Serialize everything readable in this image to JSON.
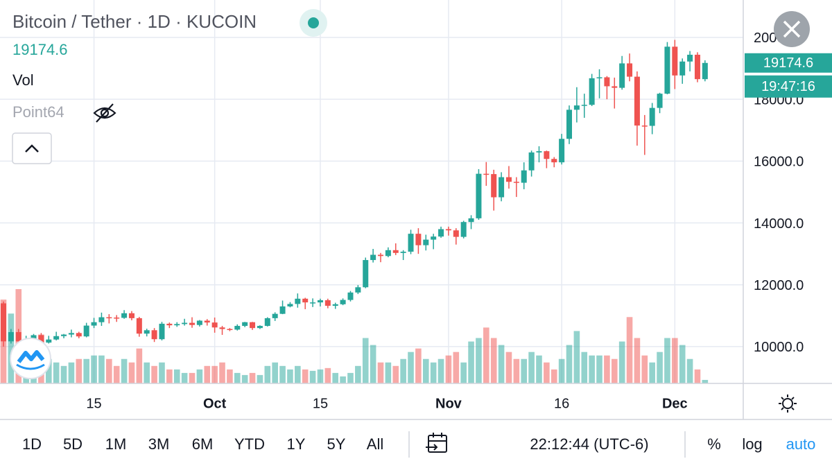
{
  "chart_data": {
    "type": "candlestick",
    "title": "Bitcoin / Tether · 1D · KUCOIN",
    "volume_label": "Vol",
    "indicator_label": "Point64",
    "price_time": "19:47:16",
    "up_color": "#26a69a",
    "down_color": "#ef5350",
    "grid": true,
    "categories": [
      null,
      null,
      null,
      null,
      null,
      null,
      null,
      null,
      null,
      null,
      null,
      null,
      "15",
      null,
      null,
      null,
      null,
      null,
      null,
      null,
      null,
      null,
      null,
      null,
      null,
      null,
      null,
      null,
      "Oct",
      null,
      null,
      null,
      null,
      null,
      null,
      null,
      null,
      null,
      null,
      null,
      null,
      null,
      "15",
      null,
      null,
      null,
      null,
      null,
      null,
      null,
      null,
      null,
      null,
      null,
      null,
      null,
      null,
      null,
      null,
      "Nov",
      null,
      null,
      null,
      null,
      null,
      null,
      null,
      null,
      null,
      null,
      null,
      null,
      null,
      null,
      "16",
      null,
      null,
      null,
      null,
      null,
      null,
      null,
      null,
      null,
      null,
      null,
      null,
      null,
      null,
      "Dec",
      null,
      null,
      null,
      null
    ],
    "open": [
      11400,
      10170,
      10470,
      10170,
      10250,
      10370,
      10130,
      10230,
      10340,
      10390,
      10440,
      10330,
      10680,
      10790,
      10950,
      10940,
      10930,
      11080,
      10920,
      10420,
      10530,
      10240,
      10740,
      10690,
      10730,
      10770,
      10700,
      10840,
      10780,
      10620,
      10570,
      10550,
      10670,
      10790,
      10600,
      10670,
      10920,
      11060,
      11300,
      11380,
      11550,
      11430,
      11430,
      11500,
      11320,
      11370,
      11510,
      11750,
      11920,
      12800,
      12970,
      12930,
      13120,
      13030,
      13070,
      13650,
      13280,
      13460,
      13560,
      13800,
      13760,
      13550,
      14030,
      14150,
      15590,
      15580,
      14830,
      15480,
      15330,
      15300,
      15700,
      16280,
      16320,
      16070,
      15960,
      16720,
      17660,
      17800,
      17820,
      18680,
      18710,
      18420,
      18370,
      19160,
      18730,
      17150,
      17140,
      17720,
      18180,
      19700,
      18770,
      19220,
      19440,
      18650
    ],
    "high": [
      11460,
      10570,
      10570,
      10350,
      10410,
      10440,
      10350,
      10480,
      10410,
      10550,
      10480,
      10770,
      10930,
      11100,
      11050,
      11020,
      11180,
      11150,
      10960,
      10580,
      10600,
      10800,
      10780,
      10790,
      10900,
      10950,
      10860,
      10890,
      10940,
      10670,
      10600,
      10720,
      10800,
      10800,
      10690,
      10950,
      11110,
      11490,
      11440,
      11720,
      11580,
      11560,
      11550,
      11550,
      11420,
      11560,
      11800,
      11990,
      12880,
      13160,
      13030,
      13210,
      13340,
      13120,
      13780,
      13830,
      13620,
      13650,
      13880,
      13880,
      13830,
      14070,
      14250,
      15740,
      15970,
      15720,
      15640,
      15840,
      15480,
      15960,
      16340,
      16480,
      16340,
      16130,
      16880,
      17800,
      18390,
      18180,
      18820,
      18970,
      18750,
      18700,
      19400,
      19480,
      18900,
      17490,
      17880,
      18210,
      19850,
      19920,
      19320,
      19560,
      19520,
      19260
    ],
    "low": [
      10000,
      10100,
      9900,
      10100,
      9880,
      10080,
      10100,
      10200,
      10270,
      10300,
      10270,
      10300,
      10600,
      10670,
      10750,
      10800,
      10900,
      10850,
      10320,
      10330,
      10150,
      10200,
      10600,
      10640,
      10680,
      10610,
      10650,
      10680,
      10450,
      10380,
      10500,
      10520,
      10630,
      10540,
      10570,
      10650,
      10830,
      11050,
      11270,
      11260,
      11210,
      11280,
      11300,
      11240,
      11220,
      11340,
      11460,
      11700,
      11890,
      12720,
      12730,
      12890,
      12960,
      12800,
      12990,
      13000,
      13110,
      13150,
      13520,
      13590,
      13300,
      13500,
      13800,
      14100,
      15200,
      14400,
      14700,
      15110,
      14840,
      15090,
      15500,
      15960,
      15770,
      15800,
      15890,
      16550,
      17250,
      17400,
      17780,
      18030,
      18000,
      17700,
      18310,
      18580,
      16500,
      16200,
      16870,
      17550,
      18160,
      18330,
      18500,
      18900,
      18550,
      18580
    ],
    "close": [
      10170,
      10470,
      10170,
      10250,
      10370,
      10130,
      10230,
      10340,
      10390,
      10440,
      10330,
      10680,
      10790,
      10950,
      10940,
      10930,
      11080,
      10920,
      10420,
      10530,
      10240,
      10740,
      10690,
      10730,
      10770,
      10700,
      10840,
      10780,
      10620,
      10570,
      10550,
      10670,
      10790,
      10600,
      10670,
      10920,
      11060,
      11300,
      11380,
      11550,
      11430,
      11430,
      11500,
      11320,
      11370,
      11510,
      11750,
      11920,
      12800,
      12970,
      12930,
      13120,
      13030,
      13070,
      13650,
      13280,
      13460,
      13560,
      13800,
      13760,
      13550,
      14030,
      14150,
      15590,
      15580,
      14830,
      15480,
      15330,
      15300,
      15700,
      16280,
      16320,
      16070,
      15960,
      16720,
      17660,
      17800,
      17820,
      18680,
      18710,
      18420,
      18370,
      19160,
      18730,
      17150,
      17140,
      17720,
      18180,
      19700,
      18770,
      19220,
      19440,
      18650,
      19174.6
    ],
    "volume": [
      120,
      100,
      135,
      60,
      45,
      70,
      35,
      30,
      25,
      30,
      35,
      35,
      40,
      40,
      35,
      25,
      35,
      30,
      50,
      30,
      25,
      30,
      20,
      20,
      15,
      15,
      20,
      25,
      25,
      30,
      20,
      15,
      12,
      15,
      12,
      25,
      30,
      25,
      20,
      25,
      20,
      18,
      20,
      22,
      15,
      10,
      15,
      25,
      65,
      55,
      30,
      30,
      25,
      35,
      45,
      50,
      35,
      30,
      35,
      40,
      45,
      30,
      60,
      65,
      80,
      65,
      55,
      45,
      35,
      35,
      45,
      40,
      30,
      20,
      35,
      55,
      75,
      45,
      40,
      40,
      40,
      35,
      60,
      95,
      65,
      40,
      30,
      45,
      65,
      65,
      55,
      35,
      20,
      5
    ],
    "ylim": [
      8810,
      21210
    ],
    "yticks": [
      {
        "value": 10000,
        "label": "10000.0"
      },
      {
        "value": 12000,
        "label": "12000.0"
      },
      {
        "value": 14000,
        "label": "14000.0"
      },
      {
        "value": 16000,
        "label": "16000.0"
      },
      {
        "value": 18000,
        "label": "18000.0"
      },
      {
        "value": 20000,
        "label": "20000.0"
      }
    ]
  },
  "toolbar": {
    "ranges": [
      "1D",
      "5D",
      "1M",
      "3M",
      "6M",
      "YTD",
      "1Y",
      "5Y",
      "All"
    ],
    "clock": "22:12:44 (UTC-6)",
    "options": [
      "%",
      "log",
      "auto"
    ]
  }
}
